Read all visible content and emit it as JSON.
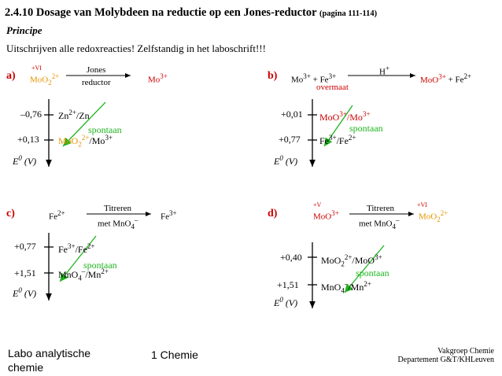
{
  "header": {
    "title": "2.4.10 Dosage van Molybdeen na reductie op een Jones-reductor",
    "pages": "(pagina 111-114)",
    "subtitle": "Principe",
    "intro": "Uitschrijven alle redoxreacties! Zelfstandig in het laboschrift!!!"
  },
  "panel_a": {
    "label": "a)",
    "ox_state": "+VI",
    "reactant": "MoO",
    "reactant_sub": "2",
    "reactant_sup": "2+",
    "arrow_top": "Jones",
    "arrow_bottom": "reductor",
    "product": "Mo",
    "product_sup": "3+",
    "pot1": "–0,76",
    "couple1": "Zn2+/Zn",
    "pot2": "+0,13",
    "couple2": "MoO22+/Mo3+",
    "spontaan": "spontaan",
    "axis": "E0 (V)"
  },
  "panel_b": {
    "label": "b)",
    "reactants": "Mo3+ + Fe3+",
    "excess": "overmaat",
    "arrow_top": "H+",
    "products": "MoO3+ + Fe2+",
    "pot1": "+0,01",
    "couple1": "MoO3+/Mo3+",
    "pot2": "+0,77",
    "couple2": "Fe3+/Fe2+",
    "spontaan": "spontaan",
    "axis": "E0 (V)"
  },
  "panel_c": {
    "label": "c)",
    "reactant": "Fe2+",
    "arrow_top": "Titreren",
    "arrow_bottom": "met MnO4–",
    "product": "Fe3+",
    "pot1": "+0,77",
    "couple1": "Fe3+/Fe2+",
    "pot2": "+1,51",
    "couple2": "MnO4–/Mn2+",
    "spontaan": "spontaan",
    "axis": "E0 (V)"
  },
  "panel_d": {
    "label": "d)",
    "ox_left": "+V",
    "reactant": "MoO3+",
    "arrow_top": "Titreren",
    "arrow_bottom": "met MnO4–",
    "ox_right": "+VI",
    "product": "MoO22+",
    "pot1": "+0,40",
    "couple1": "MoO22+/MoO3+",
    "pot2": "+1,51",
    "couple2": "MnO4–/Mn2+",
    "spontaan": "spontaan",
    "axis": "E0 (V)"
  },
  "footer": {
    "left": "Labo analytische chemie",
    "center": "1 Chemie",
    "right_line1": "Vakgroep Chemie",
    "right_line2": "Departement G&T/KHLeuven"
  },
  "colors": {
    "red": "#cc0000",
    "orange": "#e69500",
    "green": "#1db41d"
  }
}
